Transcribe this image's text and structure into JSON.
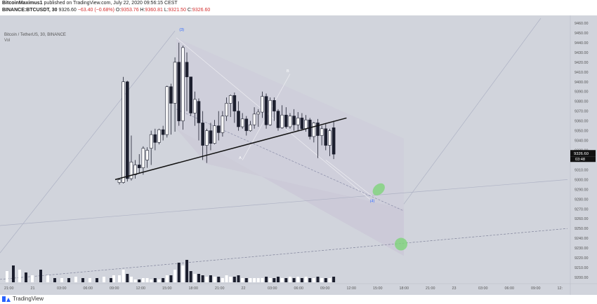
{
  "header": {
    "author": "BitcoinMaximus1",
    "published_text": "published on TradingView.com, July 22, 2020 09:56:15 CEST",
    "symbol": "BINANCE:BTCUSDT, 30",
    "price": "9326.60",
    "change": "−63.40 (−0.68%)",
    "o_label": "O:",
    "o_value": "9353.76",
    "h_label": "H:",
    "h_value": "9360.81",
    "l_label": "L:",
    "l_value": "9321.50",
    "c_label": "C:",
    "c_value": "9326.60"
  },
  "legend": {
    "title": "Bitcoin / TetherUS, 30, BINANCE",
    "sub": "Vol"
  },
  "footer": {
    "brand": "TradingView"
  },
  "chart_data": {
    "type": "candlestick",
    "ylim": [
      9195,
      9465
    ],
    "y_ticks": [
      9200,
      9210,
      9220,
      9230,
      9240,
      9250,
      9260,
      9270,
      9280,
      9290,
      9300,
      9310,
      9320,
      9330,
      9340,
      9350,
      9360,
      9370,
      9380,
      9390,
      9400,
      9410,
      9420,
      9430,
      9440,
      9450,
      9460
    ],
    "y_tick_labels": [
      "9200.00",
      "9210.00",
      "9220.00",
      "9230.00",
      "9240.00",
      "9250.00",
      "9260.00",
      "9270.00",
      "9280.00",
      "9290.00",
      "9300.00",
      "9310.00",
      "9320.00",
      "9330.00",
      "9340.00",
      "9350.00",
      "9360.00",
      "9370.00",
      "9380.00",
      "9390.00",
      "9400.00",
      "9410.00",
      "9420.00",
      "9430.00",
      "9440.00",
      "9450.00",
      "9460.00"
    ],
    "last_price": "9326.60",
    "countdown": "03:48",
    "x_tick_labels": [
      "21:00",
      "21",
      "03:00",
      "06:00",
      "09:00",
      "12:00",
      "15:00",
      "18:00",
      "21:00",
      "22",
      "03:00",
      "06:00",
      "09:00",
      "12:00",
      "15:00",
      "18:00",
      "21:00",
      "23",
      "03:00",
      "06:00",
      "09:00",
      "12:"
    ],
    "candles": [
      [
        9297,
        9300,
        9295,
        9301
      ],
      [
        9297,
        9400,
        9296,
        9405
      ],
      [
        9400,
        9301,
        9298,
        9401
      ],
      [
        9301,
        9318,
        9299,
        9345
      ],
      [
        9305,
        9315,
        9301,
        9320
      ],
      [
        9315,
        9312,
        9306,
        9326
      ],
      [
        9312,
        9332,
        9305,
        9334
      ],
      [
        9320,
        9330,
        9312,
        9333
      ],
      [
        9332,
        9346,
        9315,
        9350
      ],
      [
        9346,
        9338,
        9330,
        9352
      ],
      [
        9338,
        9351,
        9336,
        9352
      ],
      [
        9351,
        9346,
        9340,
        9355
      ],
      [
        9346,
        9395,
        9343,
        9396
      ],
      [
        9395,
        9378,
        9346,
        9398
      ],
      [
        9378,
        9420,
        9349,
        9425
      ],
      [
        9420,
        9360,
        9355,
        9440
      ],
      [
        9360,
        9435,
        9351,
        9437
      ],
      [
        9420,
        9405,
        9370,
        9430
      ],
      [
        9405,
        9368,
        9365,
        9405
      ],
      [
        9368,
        9382,
        9355,
        9390
      ],
      [
        9380,
        9358,
        9340,
        9383
      ],
      [
        9358,
        9335,
        9320,
        9370
      ],
      [
        9335,
        9350,
        9317,
        9352
      ],
      [
        9350,
        9337,
        9330,
        9358
      ],
      [
        9337,
        9355,
        9336,
        9361
      ],
      [
        9355,
        9348,
        9340,
        9370
      ],
      [
        9348,
        9365,
        9344,
        9370
      ],
      [
        9365,
        9378,
        9360,
        9384
      ],
      [
        9378,
        9386,
        9364,
        9387
      ],
      [
        9386,
        9370,
        9358,
        9389
      ],
      [
        9370,
        9354,
        9350,
        9380
      ],
      [
        9354,
        9362,
        9352,
        9368
      ],
      [
        9362,
        9350,
        9345,
        9365
      ],
      [
        9350,
        9356,
        9349,
        9360
      ],
      [
        9356,
        9367,
        9352,
        9374
      ],
      [
        9367,
        9369,
        9354,
        9372
      ],
      [
        9369,
        9385,
        9363,
        9390
      ],
      [
        9385,
        9356,
        9352,
        9388
      ],
      [
        9356,
        9381,
        9355,
        9384
      ],
      [
        9381,
        9370,
        9360,
        9384
      ],
      [
        9370,
        9353,
        9350,
        9372
      ],
      [
        9353,
        9366,
        9352,
        9376
      ],
      [
        9366,
        9354,
        9352,
        9374
      ],
      [
        9354,
        9365,
        9352,
        9368
      ],
      [
        9365,
        9356,
        9350,
        9372
      ],
      [
        9356,
        9363,
        9350,
        9369
      ],
      [
        9363,
        9352,
        9350,
        9368
      ],
      [
        9352,
        9361,
        9349,
        9366
      ],
      [
        9361,
        9344,
        9341,
        9363
      ],
      [
        9344,
        9358,
        9338,
        9359
      ],
      [
        9358,
        9345,
        9322,
        9362
      ],
      [
        9345,
        9352,
        9335,
        9355
      ],
      [
        9352,
        9335,
        9330,
        9357
      ],
      [
        9335,
        9350,
        9324,
        9352
      ],
      [
        9353,
        9326,
        9321,
        9360
      ]
    ],
    "volumes": [
      5,
      9,
      6,
      4,
      2,
      2,
      3,
      3,
      2,
      3,
      2,
      3,
      5,
      5,
      9,
      14,
      12,
      16,
      8,
      6,
      6,
      5,
      4,
      5,
      4,
      4,
      3,
      5,
      4,
      4,
      5,
      3,
      3,
      3,
      3,
      3,
      3,
      4,
      3,
      3,
      4,
      3,
      3,
      4,
      3,
      4,
      3,
      4,
      3,
      3,
      4,
      3,
      3,
      3,
      4
    ],
    "annotations": [
      {
        "text": "(3)",
        "price": 9452,
        "bar": 16
      },
      {
        "text": "B",
        "price": 9410,
        "bar": 43
      },
      {
        "text": "A",
        "price": 9321,
        "bar": 31
      },
      {
        "text": "(4)",
        "price": 9277,
        "bar": 64
      }
    ]
  }
}
